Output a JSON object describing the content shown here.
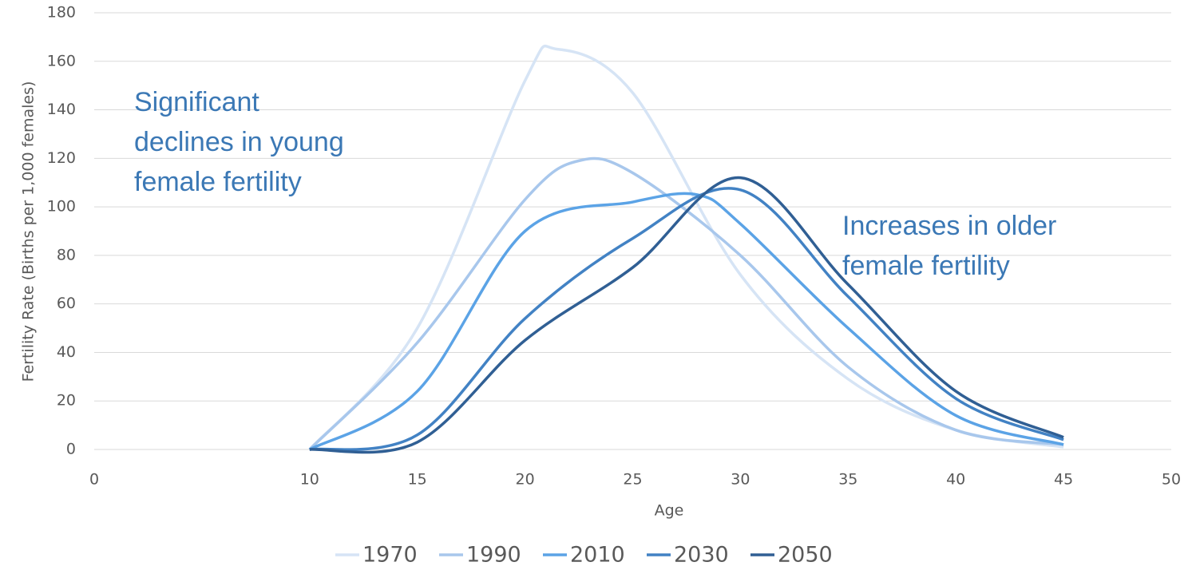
{
  "chart_data": {
    "type": "line",
    "x_label": "Age",
    "y_label": "Fertility Rate (Births per 1,000 females)",
    "xlim": [
      0,
      50
    ],
    "xticks": [
      0,
      10,
      15,
      20,
      25,
      30,
      35,
      40,
      45,
      50
    ],
    "ylim": [
      0,
      180
    ],
    "yticks": [
      0,
      20,
      40,
      60,
      80,
      100,
      120,
      140,
      160,
      180
    ],
    "grid": true,
    "legend": "bottom",
    "series": [
      {
        "name": "1970",
        "color": "#d6e4f5",
        "x": [
          10,
          15,
          20,
          21.5,
          25,
          30,
          35,
          40,
          45
        ],
        "values": [
          0,
          50,
          152,
          165,
          147,
          72,
          29,
          8,
          1
        ]
      },
      {
        "name": "1990",
        "color": "#a8c7ec",
        "x": [
          10,
          15,
          20,
          22.5,
          25,
          30,
          35,
          40,
          45
        ],
        "values": [
          0,
          44,
          103,
          119,
          114,
          80,
          34,
          8,
          2
        ]
      },
      {
        "name": "2010",
        "color": "#5ba3e6",
        "x": [
          10,
          15,
          20,
          25,
          28,
          30,
          35,
          40,
          45
        ],
        "values": [
          0,
          24,
          90,
          102,
          105,
          93,
          50,
          14,
          2
        ]
      },
      {
        "name": "2030",
        "color": "#4282c4",
        "x": [
          10,
          15,
          20,
          25,
          30,
          35,
          40,
          45
        ],
        "values": [
          0,
          6,
          54,
          87,
          107,
          63,
          21,
          4
        ]
      },
      {
        "name": "2050",
        "color": "#305f94",
        "x": [
          10,
          15,
          20,
          25,
          30,
          35,
          40,
          45
        ],
        "values": [
          0,
          3,
          45,
          75,
          112,
          68,
          24,
          5
        ]
      }
    ],
    "annotations": [
      {
        "lines": [
          "Significant",
          "declines in young",
          "female fertility"
        ]
      },
      {
        "lines": [
          "Increases in older",
          "female fertility"
        ]
      }
    ]
  }
}
